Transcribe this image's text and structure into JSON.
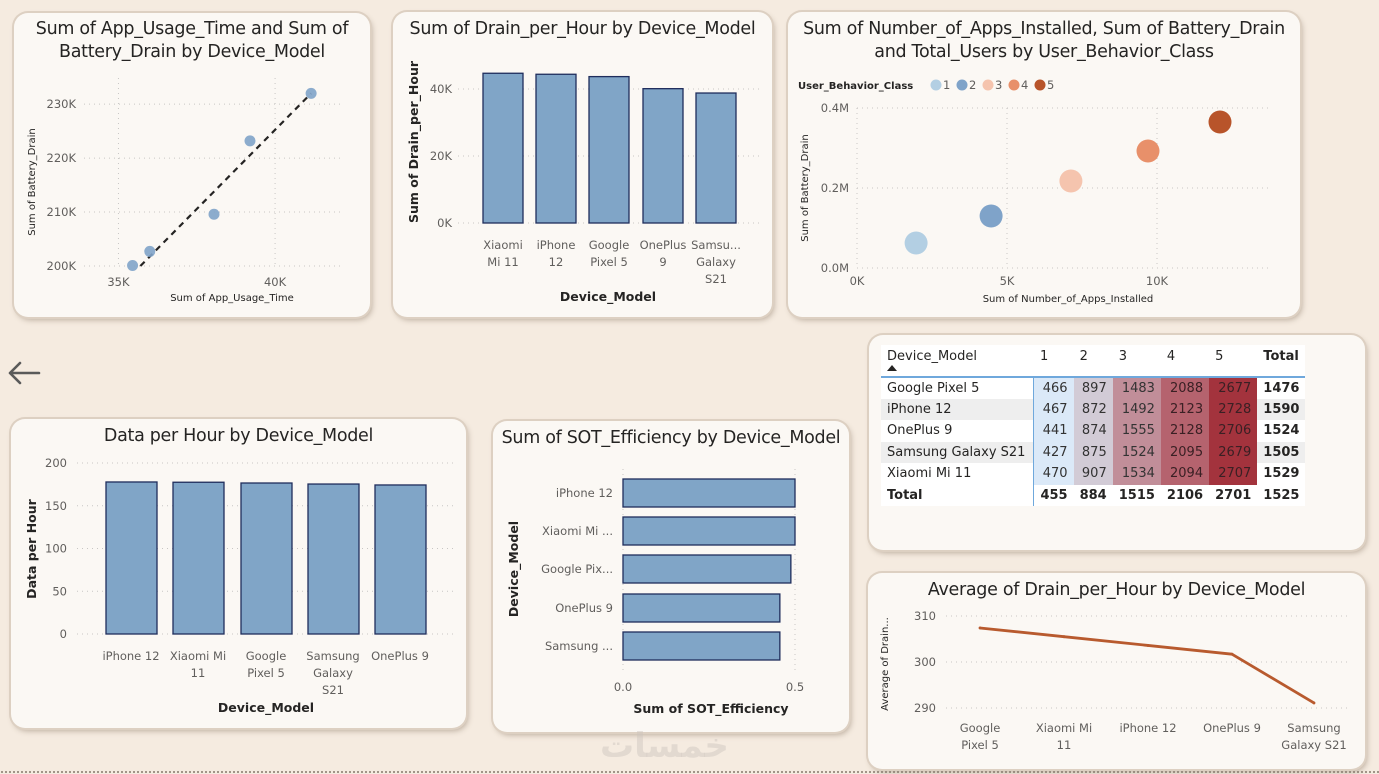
{
  "page": {
    "background": "#f5ebe0",
    "back_icon": "arrow-left-icon",
    "watermark": "خمسات"
  },
  "colors": {
    "bar_fill": "#80a5c7",
    "bar_stroke": "#1f2d5c",
    "line": "#b85a2e",
    "trend": "#252423",
    "scatter_point": "#7fa3c9"
  },
  "chart_data": [
    {
      "id": "scatter-usage-drain",
      "type": "scatter",
      "title": "Sum of App_Usage_Time and Sum of Battery_Drain by Device_Model",
      "title_lines": [
        "Sum of App_Usage_Time and Sum of",
        "Battery_Drain by Device_Model"
      ],
      "xlabel": "Sum of App_Usage_Time",
      "ylabel": "Sum of Battery_Drain",
      "x_ticks": [
        35000,
        40000
      ],
      "x_tick_labels": [
        "35K",
        "40K"
      ],
      "y_ticks": [
        200000,
        210000,
        220000,
        230000
      ],
      "y_tick_labels": [
        "200K",
        "210K",
        "220K",
        "230K"
      ],
      "xlim": [
        33900,
        42200
      ],
      "ylim": [
        200000,
        233000
      ],
      "points": [
        {
          "x": 35450,
          "y": 200100
        },
        {
          "x": 36000,
          "y": 202700
        },
        {
          "x": 38050,
          "y": 209600
        },
        {
          "x": 39200,
          "y": 223200
        },
        {
          "x": 41150,
          "y": 232000
        }
      ],
      "trendline": {
        "from": [
          35700,
          200000
        ],
        "to": [
          41150,
          232000
        ],
        "style": "dashed"
      },
      "grid": true
    },
    {
      "id": "bar-drain-per-hour",
      "type": "bar",
      "title": "Sum of Drain_per_Hour by Device_Model",
      "xlabel": "Device_Model",
      "ylabel": "Sum of Drain_per_Hour",
      "categories": [
        "Xiaomi Mi 11",
        "iPhone 12",
        "Google Pixel 5",
        "OnePlus 9",
        "Samsung Galaxy S21"
      ],
      "category_labels": [
        [
          "Xiaomi",
          "Mi 11"
        ],
        [
          "iPhone",
          "12"
        ],
        [
          "Google",
          "Pixel 5"
        ],
        [
          "OnePlus",
          "9"
        ],
        [
          "Samsu...",
          "Galaxy",
          "S21"
        ]
      ],
      "values": [
        44700,
        44400,
        43700,
        40100,
        38800
      ],
      "y_ticks": [
        0,
        20000,
        40000
      ],
      "y_tick_labels": [
        "0K",
        "20K",
        "40K"
      ],
      "ylim": [
        0,
        40000
      ],
      "grid": true
    },
    {
      "id": "bubble-apps-drain",
      "type": "scatter",
      "title": "Sum of Number_of_Apps_Installed, Sum of Battery_Drain and Total_Users by User_Behavior_Class",
      "title_lines": [
        "Sum of Number_of_Apps_Installed, Sum of Battery_Drain",
        "and Total_Users by User_Behavior_Class"
      ],
      "xlabel": "Sum of Number_of_Apps_Installed",
      "ylabel": "Sum of Battery_Drain",
      "legend_title": "User_Behavior_Class",
      "legend_position": "top-left",
      "x_ticks": [
        0,
        5000,
        10000
      ],
      "x_tick_labels": [
        "0K",
        "5K",
        "10K"
      ],
      "y_ticks": [
        0,
        200000,
        400000
      ],
      "y_tick_labels": [
        "0.0M",
        "0.2M",
        "0.4M"
      ],
      "xlim": [
        0,
        14000
      ],
      "ylim": [
        0,
        400000
      ],
      "series": [
        {
          "name": "1",
          "color": "#b3cfe3",
          "x": 1970,
          "y": 62500
        },
        {
          "name": "2",
          "color": "#7fa3c9",
          "x": 4470,
          "y": 130000
        },
        {
          "name": "3",
          "color": "#f5c4ae",
          "x": 7130,
          "y": 217500
        },
        {
          "name": "4",
          "color": "#e8906a",
          "x": 9700,
          "y": 292500
        },
        {
          "name": "5",
          "color": "#b8542a",
          "x": 12100,
          "y": 365000
        }
      ],
      "grid": true
    },
    {
      "id": "matrix-device-class",
      "type": "table",
      "columns": [
        "Device_Model",
        "1",
        "2",
        "3",
        "4",
        "5",
        "Total"
      ],
      "rows": [
        {
          "label": "Google Pixel 5",
          "values": [
            466,
            897,
            1483,
            2088,
            2677
          ],
          "total": 1476
        },
        {
          "label": "iPhone 12",
          "values": [
            467,
            872,
            1492,
            2123,
            2728
          ],
          "total": 1590
        },
        {
          "label": "OnePlus 9",
          "values": [
            441,
            874,
            1555,
            2128,
            2706
          ],
          "total": 1524
        },
        {
          "label": "Samsung Galaxy S21",
          "values": [
            427,
            875,
            1524,
            2095,
            2679
          ],
          "total": 1505
        },
        {
          "label": "Xiaomi Mi 11",
          "values": [
            470,
            907,
            1534,
            2094,
            2707
          ],
          "total": 1529
        }
      ],
      "total_row": {
        "label": "Total",
        "values": [
          455,
          884,
          1515,
          2106,
          2701
        ],
        "total": 1525
      },
      "column_colors": [
        "#dbe9f8",
        "#d2cbd6",
        "#c18e99",
        "#b5636e",
        "#a3333d"
      ],
      "sort": "ascending"
    },
    {
      "id": "bar-data-per-hour",
      "type": "bar",
      "title": "Data per Hour by Device_Model",
      "xlabel": "Device_Model",
      "ylabel": "Data per Hour",
      "categories": [
        "iPhone 12",
        "Xiaomi Mi 11",
        "Google Pixel 5",
        "Samsung Galaxy S21",
        "OnePlus 9"
      ],
      "category_labels": [
        [
          "iPhone 12"
        ],
        [
          "Xiaomi Mi",
          "11"
        ],
        [
          "Google",
          "Pixel 5"
        ],
        [
          "Samsung",
          "Galaxy",
          "S21"
        ],
        [
          "OnePlus 9"
        ]
      ],
      "values": [
        177.8,
        177.5,
        176.6,
        175.4,
        174.3
      ],
      "y_ticks": [
        0,
        50,
        100,
        150,
        200
      ],
      "y_tick_labels": [
        "0",
        "50",
        "100",
        "150",
        "200"
      ],
      "ylim": [
        0,
        200
      ],
      "grid": true
    },
    {
      "id": "hbar-sot-efficiency",
      "type": "bar",
      "orientation": "horizontal",
      "title": "Sum of SOT_Efficiency by Device_Model",
      "xlabel": "Sum of SOT_Efficiency",
      "ylabel": "Device_Model",
      "categories": [
        "iPhone 12",
        "Xiaomi Mi 11",
        "Google Pixel 5",
        "OnePlus 9",
        "Samsung Galaxy S21"
      ],
      "category_labels": [
        "iPhone 12",
        "Xiaomi Mi ...",
        "Google Pix...",
        "OnePlus 9",
        "Samsung ..."
      ],
      "values": [
        0.5,
        0.5,
        0.488,
        0.456,
        0.456
      ],
      "x_ticks": [
        0,
        0.5
      ],
      "x_tick_labels": [
        "0.0",
        "0.5"
      ],
      "xlim": [
        0,
        0.5
      ],
      "grid": true
    },
    {
      "id": "line-avg-drain",
      "type": "line",
      "title": "Average of Drain_per_Hour by Device_Model",
      "xlabel": "",
      "ylabel": "Average of Drain...",
      "categories": [
        "Google Pixel 5",
        "Xiaomi Mi 11",
        "iPhone 12",
        "OnePlus 9",
        "Samsung Galaxy S21"
      ],
      "category_labels": [
        [
          "Google",
          "Pixel 5"
        ],
        [
          "Xiaomi Mi",
          "11"
        ],
        [
          "iPhone 12"
        ],
        [
          "OnePlus 9"
        ],
        [
          "Samsung",
          "Galaxy S21"
        ]
      ],
      "values": [
        307.4,
        305.5,
        303.6,
        301.7,
        291.1
      ],
      "y_ticks": [
        290,
        300,
        310
      ],
      "y_tick_labels": [
        "290",
        "300",
        "310"
      ],
      "ylim": [
        290,
        310
      ],
      "grid": true
    }
  ]
}
